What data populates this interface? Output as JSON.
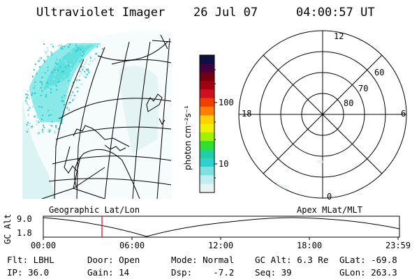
{
  "header": {
    "instrument": "Ultraviolet Imager",
    "date": "26 Jul 07",
    "time": "04:00:57 UT"
  },
  "colorbar": {
    "unit_label": "photon cm⁻²s⁻¹",
    "ticks": [
      "100",
      "10"
    ],
    "colors": [
      "#101040",
      "#400040",
      "#700010",
      "#a00010",
      "#d01020",
      "#f04000",
      "#ff8000",
      "#ffd000",
      "#f0f000",
      "#a0f000",
      "#30e030",
      "#20d0a0",
      "#30d0d0",
      "#80e0e0",
      "#c0eeee",
      "#e8f4f4"
    ]
  },
  "polar_plot": {
    "mlt_labels": [
      "12",
      "18",
      "6",
      "0"
    ],
    "lat_labels": [
      "60",
      "70",
      "80"
    ]
  },
  "orbit_panel": {
    "left_label": "Geographic Lat/Lon",
    "right_label": "Apex MLat/MLT",
    "y_axis_label": "GC Alt",
    "y_ticks": [
      "9.0",
      "1.8"
    ],
    "x_ticks": [
      "00:00",
      "06:00",
      "12:00",
      "18:00",
      "23:59"
    ]
  },
  "info": {
    "row1": [
      "Flt: LBHL",
      "Door: Open",
      "Mode: Normal",
      "GC Alt: 6.3 Re",
      "GLat: -69.8"
    ],
    "row2": [
      "IP: 36.0",
      "Gain: 14",
      "Dsp:    -7.2",
      "Seq: 39",
      "GLon: 263.3"
    ]
  },
  "accent_colors": {
    "aurora": "#30d8d8",
    "marker": "#d02020"
  }
}
